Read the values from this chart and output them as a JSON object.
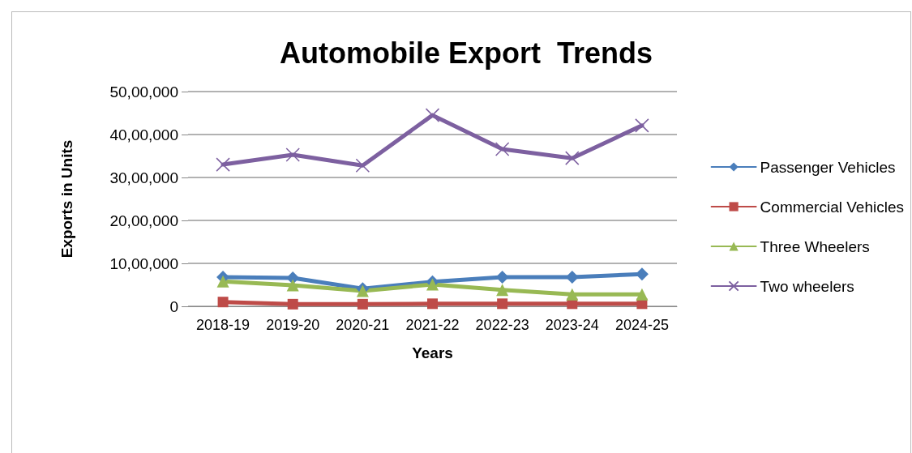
{
  "chart_data": {
    "type": "line",
    "title": "Automobile Export  Trends",
    "xlabel": "Years",
    "ylabel": "Exports in Units",
    "categories": [
      "2018-19",
      "2019-20",
      "2020-21",
      "2021-22",
      "2022-23",
      "2023-24",
      "2024-25"
    ],
    "series": [
      {
        "name": "Passenger Vehicles",
        "color": "#4a7ebb",
        "marker": "diamond",
        "values": [
          680000,
          660000,
          410000,
          570000,
          680000,
          680000,
          750000
        ]
      },
      {
        "name": "Commercial Vehicles",
        "color": "#be4b48",
        "marker": "square",
        "values": [
          100000,
          50000,
          50000,
          60000,
          60000,
          60000,
          60000
        ]
      },
      {
        "name": "Three Wheelers",
        "color": "#98b954",
        "marker": "triangle",
        "values": [
          580000,
          490000,
          360000,
          510000,
          380000,
          280000,
          280000
        ]
      },
      {
        "name": "Two wheelers",
        "color": "#7d60a0",
        "marker": "cross",
        "values": [
          3300000,
          3530000,
          3280000,
          4450000,
          3660000,
          3450000,
          4210000
        ]
      }
    ],
    "ylim": [
      0,
      5000000
    ],
    "yticks": [
      {
        "value": 0,
        "label": "0"
      },
      {
        "value": 1000000,
        "label": "10,00,000"
      },
      {
        "value": 2000000,
        "label": "20,00,000"
      },
      {
        "value": 3000000,
        "label": "30,00,000"
      },
      {
        "value": 4000000,
        "label": "40,00,000"
      },
      {
        "value": 5000000,
        "label": "50,00,000"
      }
    ],
    "grid": "y",
    "legend": "right",
    "line_style": "solid"
  }
}
